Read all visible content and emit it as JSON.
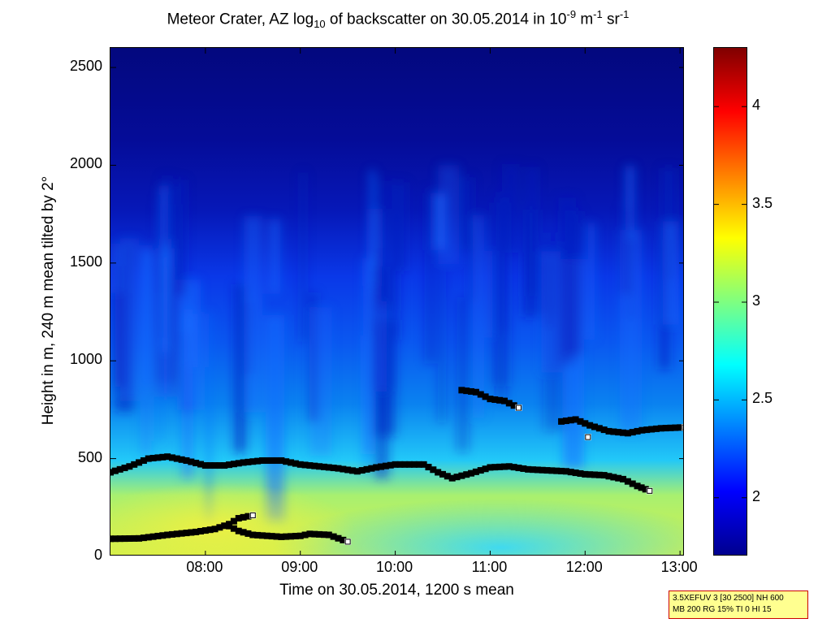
{
  "chart_data": {
    "type": "heatmap",
    "title_parts": {
      "a": "Meteor Crater, AZ log",
      "sub": "10",
      "b": " of backscatter on 30.05.2014 in 10",
      "sup1": "-9",
      "c": " m",
      "sup2": "-1",
      "d": " sr",
      "sup3": "-1"
    },
    "xlabel": "Time on 30.05.2014, 1200 s mean",
    "ylabel": "Height in m, 240 m mean tilted by 2°",
    "xlim": [
      7.0,
      13.05
    ],
    "ylim": [
      0,
      2600
    ],
    "xticks": [
      {
        "value": 8,
        "label": "08:00"
      },
      {
        "value": 9,
        "label": "09:00"
      },
      {
        "value": 10,
        "label": "10:00"
      },
      {
        "value": 11,
        "label": "11:00"
      },
      {
        "value": 12,
        "label": "12:00"
      },
      {
        "value": 13,
        "label": "13:00"
      }
    ],
    "yticks": [
      {
        "value": 0,
        "label": "0"
      },
      {
        "value": 500,
        "label": "500"
      },
      {
        "value": 1000,
        "label": "1000"
      },
      {
        "value": 1500,
        "label": "1500"
      },
      {
        "value": 2000,
        "label": "2000"
      },
      {
        "value": 2500,
        "label": "2500"
      }
    ],
    "colorbar": {
      "range": [
        1.7,
        4.3
      ],
      "colormap": "jet",
      "ticks": [
        {
          "value": 2,
          "label": "2"
        },
        {
          "value": 2.5,
          "label": "2.5"
        },
        {
          "value": 3,
          "label": "3"
        },
        {
          "value": 3.5,
          "label": "3.5"
        },
        {
          "value": 4,
          "label": "4"
        }
      ]
    },
    "layer_heights": [
      {
        "name": "layer-1",
        "points": [
          [
            7.0,
            430
          ],
          [
            7.2,
            460
          ],
          [
            7.4,
            500
          ],
          [
            7.6,
            510
          ],
          [
            7.8,
            490
          ],
          [
            8.0,
            465
          ],
          [
            8.2,
            465
          ],
          [
            8.4,
            480
          ],
          [
            8.6,
            490
          ],
          [
            8.8,
            490
          ],
          [
            9.0,
            470
          ],
          [
            9.2,
            460
          ],
          [
            9.4,
            450
          ],
          [
            9.6,
            435
          ],
          [
            9.8,
            455
          ],
          [
            10.0,
            470
          ],
          [
            10.3,
            470
          ],
          [
            10.45,
            430
          ],
          [
            10.6,
            400
          ],
          [
            10.8,
            425
          ],
          [
            11.0,
            455
          ],
          [
            11.2,
            460
          ],
          [
            11.4,
            445
          ],
          [
            11.6,
            440
          ],
          [
            11.8,
            435
          ],
          [
            12.0,
            420
          ],
          [
            12.2,
            415
          ],
          [
            12.4,
            395
          ],
          [
            12.55,
            360
          ],
          [
            12.68,
            335
          ]
        ]
      },
      {
        "name": "layer-2",
        "points": [
          [
            7.0,
            90
          ],
          [
            7.3,
            92
          ],
          [
            7.6,
            110
          ],
          [
            7.9,
            125
          ],
          [
            8.1,
            140
          ],
          [
            8.25,
            165
          ],
          [
            8.35,
            195
          ],
          [
            8.5,
            210
          ]
        ]
      },
      {
        "name": "layer-3",
        "points": [
          [
            8.25,
            155
          ],
          [
            8.35,
            130
          ],
          [
            8.5,
            110
          ],
          [
            8.8,
            100
          ],
          [
            9.0,
            105
          ],
          [
            9.1,
            115
          ],
          [
            9.3,
            110
          ],
          [
            9.5,
            75
          ]
        ]
      },
      {
        "name": "layer-4",
        "points": [
          [
            10.7,
            850
          ],
          [
            10.85,
            840
          ],
          [
            11.0,
            805
          ],
          [
            11.15,
            795
          ],
          [
            11.3,
            760
          ]
        ]
      },
      {
        "name": "layer-5",
        "points": [
          [
            11.75,
            690
          ],
          [
            11.9,
            700
          ],
          [
            12.05,
            670
          ],
          [
            12.25,
            640
          ],
          [
            12.45,
            630
          ],
          [
            12.6,
            645
          ],
          [
            12.8,
            655
          ],
          [
            13.05,
            660
          ]
        ]
      },
      {
        "name": "layer-6",
        "points": [
          [
            12.03,
            610
          ]
        ]
      }
    ]
  },
  "infobox": {
    "line1": "3.5XEFUV 3 [30 2500] NH 600",
    "line2": "MB 200 RG 15% TI 0 HI 15"
  }
}
